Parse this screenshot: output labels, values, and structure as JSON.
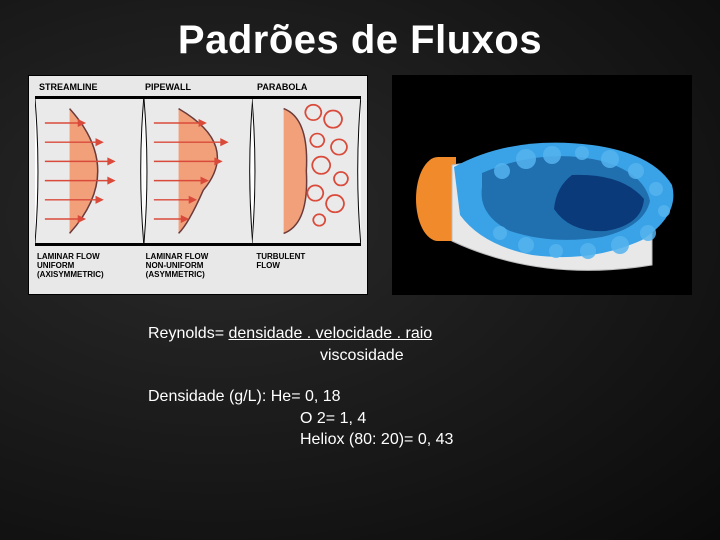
{
  "title": "Padrões de Fluxos",
  "left_diagram": {
    "top_labels": [
      "STREAMLINE",
      "PIPEWALL",
      "PARABOLA"
    ],
    "bottom_labels": [
      "LAMINAR FLOW\nUNIFORM\n(AXISYMMETRIC)",
      "LAMINAR FLOW\nNON-UNIFORM\n(ASYMMETRIC)",
      "TURBULENT\nFLOW"
    ],
    "colors": {
      "background": "#e8e8e8",
      "pipe_bg": "#eaeaea",
      "pipe_wall": "#000000",
      "streamlines": "#d94a3a",
      "parabola_fill": "#f2a07a",
      "parabola_stroke": "#6b3a3a",
      "arrow": "#d94a3a",
      "turbulent": "#d94a3a"
    }
  },
  "right_render": {
    "colors": {
      "bg": "#000000",
      "inlet": "#f08a2a",
      "cone": "#dcdcdc",
      "surface": "#3aa3e8",
      "surface_dark": "#1e6aa8",
      "core": "#0b3a7a"
    }
  },
  "formula": {
    "prefix": "Reynolds= ",
    "numerator": "densidade . velocidade . raio",
    "denominator": "viscosidade"
  },
  "density": {
    "header": "Densidade (g/L): He= 0, 18",
    "line2": "O 2= 1, 4",
    "line3": "Heliox (80: 20)= 0, 43"
  }
}
